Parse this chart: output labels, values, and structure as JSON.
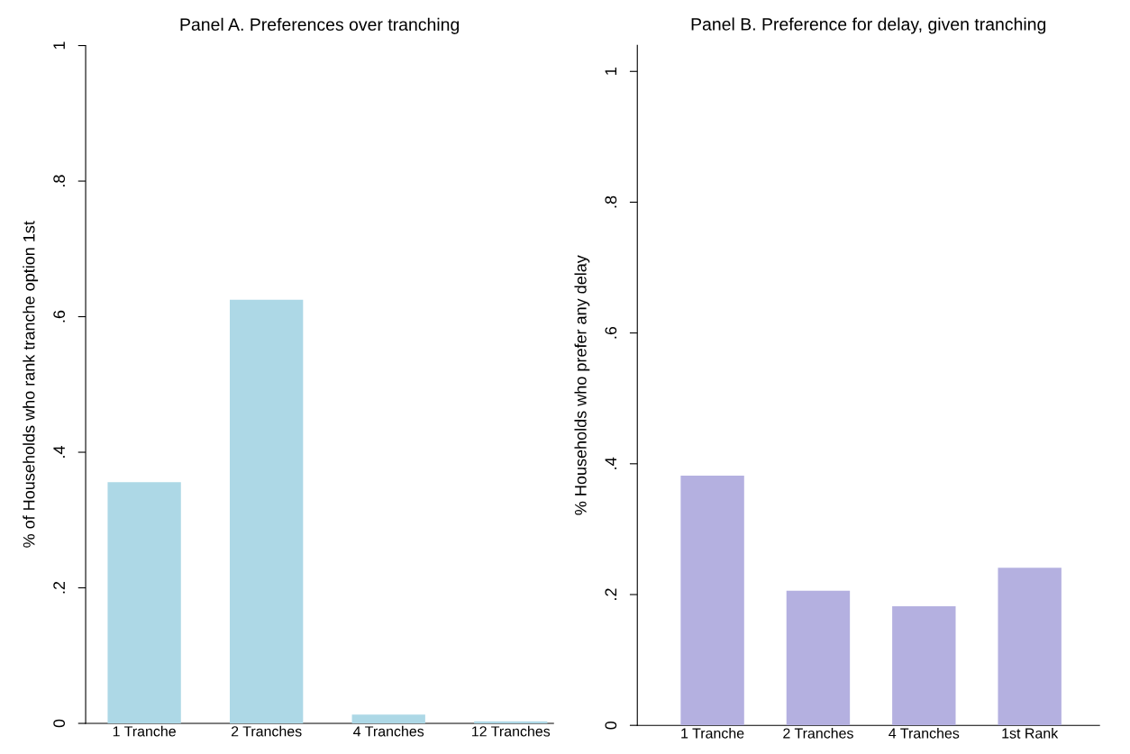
{
  "chart_data": [
    {
      "type": "bar",
      "title": "Panel A. Preferences over tranching",
      "ylabel": "% of Households who rank tranche option 1st",
      "categories": [
        "1 Tranche",
        "2 Tranches",
        "4 Tranches",
        "12 Tranches"
      ],
      "series": [
        {
          "color": "#add8e6",
          "values": [
            0.356,
            0.625,
            0.013,
            0.003
          ]
        }
      ],
      "ylim": [
        0,
        1
      ],
      "yticks": [
        {
          "value": 0,
          "label": "0"
        },
        {
          "value": 0.2,
          "label": ".2"
        },
        {
          "value": 0.4,
          "label": ".4"
        },
        {
          "value": 0.6,
          "label": ".6"
        },
        {
          "value": 0.8,
          "label": ".8"
        },
        {
          "value": 1,
          "label": "1"
        }
      ],
      "grid": false
    },
    {
      "type": "bar",
      "title": "Panel B. Preference for delay, given tranching",
      "ylabel": "% Households who prefer any delay",
      "categories": [
        "1 Tranche",
        "2 Tranches",
        "4 Tranches",
        "1st Rank"
      ],
      "series": [
        {
          "color": "#b4b0e0",
          "values": [
            0.382,
            0.206,
            0.182,
            0.241
          ]
        }
      ],
      "ylim": [
        0,
        1.04
      ],
      "yticks": [
        {
          "value": 0,
          "label": "0"
        },
        {
          "value": 0.2,
          "label": ".2"
        },
        {
          "value": 0.4,
          "label": ".4"
        },
        {
          "value": 0.6,
          "label": ".6"
        },
        {
          "value": 0.8,
          "label": ".8"
        },
        {
          "value": 1,
          "label": "1"
        }
      ],
      "grid": false
    }
  ]
}
